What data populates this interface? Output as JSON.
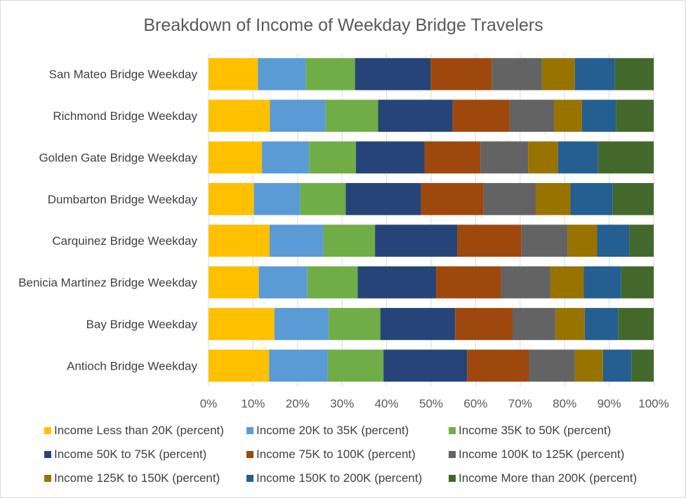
{
  "chart_data": {
    "type": "bar",
    "orientation": "horizontal",
    "stacked": "percent",
    "title": "Breakdown of Income of Weekday Bridge Travelers",
    "xlabel": "",
    "ylabel": "",
    "xlim": [
      0,
      100
    ],
    "x_ticks": [
      "0%",
      "10%",
      "20%",
      "30%",
      "40%",
      "50%",
      "60%",
      "70%",
      "80%",
      "90%",
      "100%"
    ],
    "grid": true,
    "legend_position": "bottom",
    "categories": [
      "San Mateo Bridge Weekday",
      "Richmond Bridge Weekday",
      "Golden Gate Bridge Weekday",
      "Dumbarton Bridge Weekday",
      "Carquinez Bridge Weekday",
      "Benicia Martinez Bridge Weekday",
      "Bay Bridge Weekday",
      "Antioch Bridge Weekday"
    ],
    "series": [
      {
        "name": "Income Less than 20K (percent)",
        "color": "#FFC000",
        "values": [
          11.1,
          13.8,
          12.0,
          10.2,
          13.7,
          11.3,
          14.8,
          13.6
        ]
      },
      {
        "name": "Income 20K to 35K (percent)",
        "color": "#5B9BD5",
        "values": [
          10.8,
          12.5,
          10.6,
          10.4,
          12.1,
          10.9,
          12.2,
          13.2
        ]
      },
      {
        "name": "Income 35K to 50K (percent)",
        "color": "#70AD47",
        "values": [
          11.0,
          11.8,
          10.5,
          10.2,
          11.6,
          11.3,
          11.6,
          12.5
        ]
      },
      {
        "name": "Income 50K to 75K (percent)",
        "color": "#264478",
        "values": [
          17.0,
          16.7,
          15.4,
          16.9,
          18.5,
          17.6,
          16.8,
          18.8
        ]
      },
      {
        "name": "Income 75K to 100K (percent)",
        "color": "#9E480E",
        "values": [
          13.7,
          12.8,
          12.6,
          14.1,
          14.4,
          14.6,
          12.9,
          13.9
        ]
      },
      {
        "name": "Income 100K to 125K (percent)",
        "color": "#636363",
        "values": [
          11.3,
          10.0,
          10.7,
          11.7,
          10.4,
          11.1,
          9.6,
          10.3
        ]
      },
      {
        "name": "Income 125K to 150K (percent)",
        "color": "#997300",
        "values": [
          7.4,
          6.3,
          6.7,
          7.8,
          6.6,
          7.5,
          6.6,
          6.3
        ]
      },
      {
        "name": "Income 150K to 200K (percent)",
        "color": "#255E91",
        "values": [
          9.0,
          7.6,
          9.0,
          9.5,
          7.2,
          8.4,
          7.5,
          6.4
        ]
      },
      {
        "name": "Income More than 200K (percent)",
        "color": "#43682B",
        "values": [
          8.7,
          8.5,
          12.5,
          9.2,
          5.5,
          7.3,
          8.0,
          5.0
        ]
      }
    ]
  }
}
